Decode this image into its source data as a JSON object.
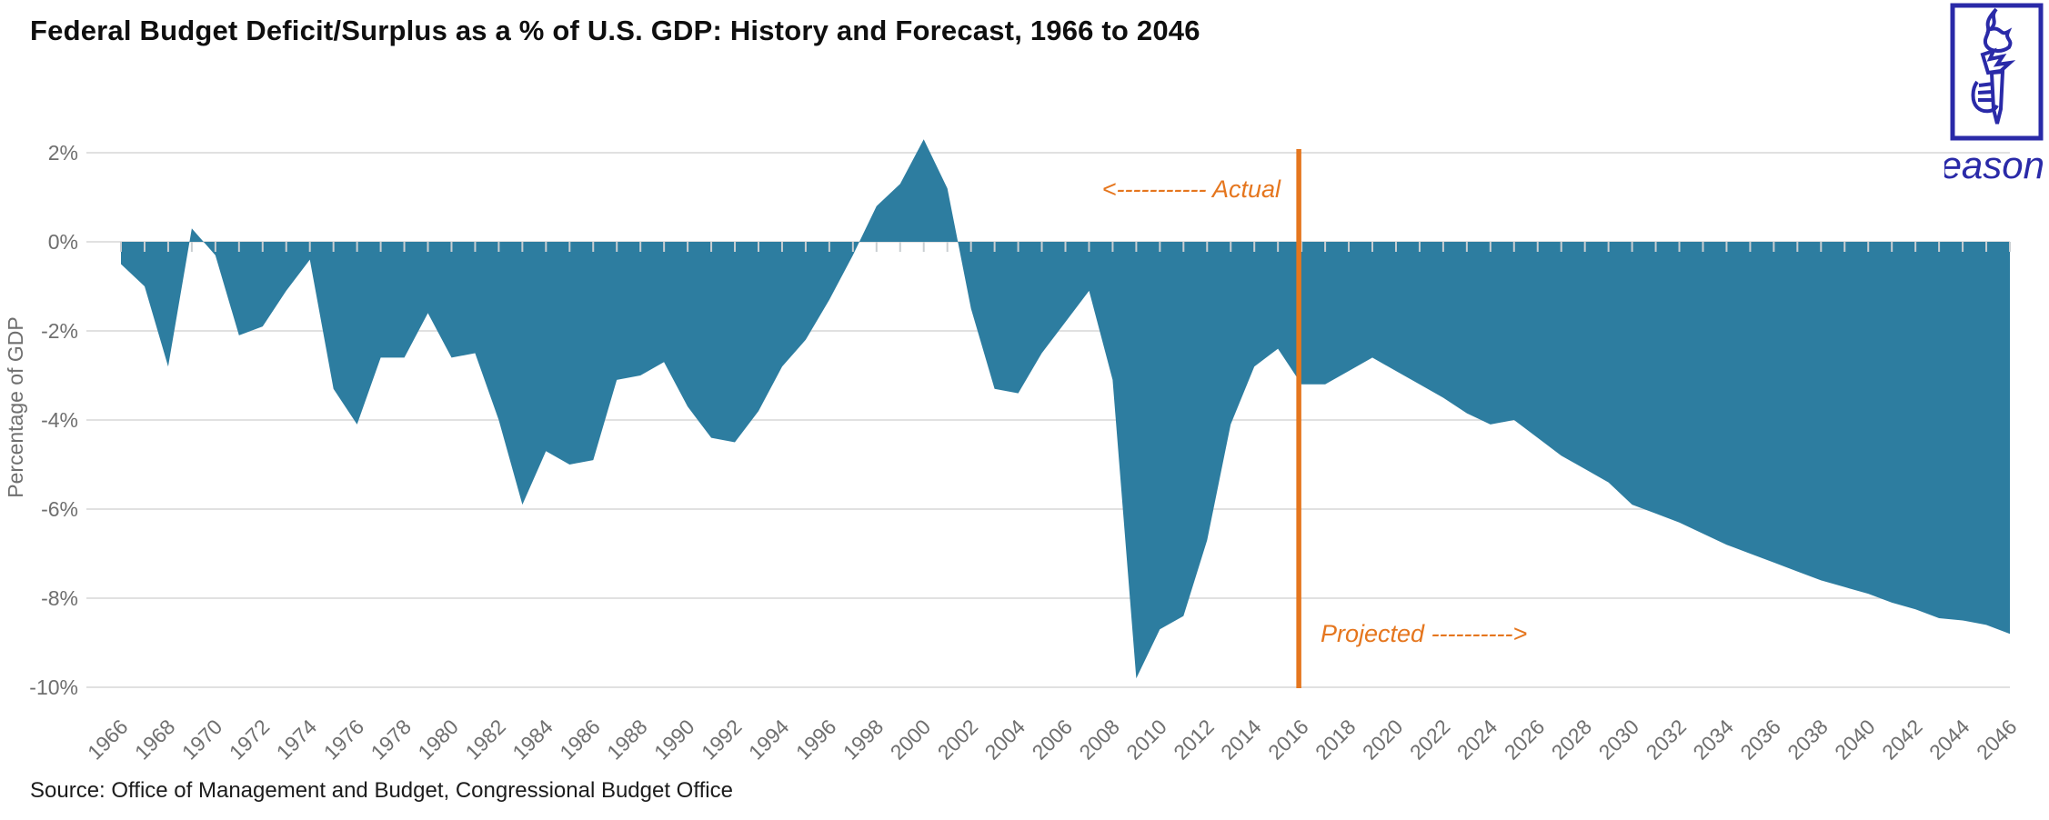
{
  "title": "Federal Budget Deficit/Surplus as a % of U.S. GDP: History and Forecast, 1966 to 2046",
  "source": "Source: Office of Management and Budget, Congressional Budget Office",
  "logo": {
    "brand": "Reason",
    "torch_icon": "torch-in-rectangle"
  },
  "colors": {
    "area": "#2d7da0",
    "divider": "#e5761e",
    "annotation": "#e5761e",
    "grid": "#e1e1e1",
    "axis_text": "#6f6f6f",
    "year_tick": "#c9ced1",
    "logo_blue": "#2a2aa8"
  },
  "annotations": {
    "actual_label": "<----------- Actual",
    "projected_label": "Projected ---------->",
    "divider_year": 2016
  },
  "chart_data": {
    "type": "area",
    "title": "Federal Budget Deficit/Surplus as a % of U.S. GDP: History and Forecast, 1966 to 2046",
    "xlabel": "",
    "ylabel": "Percentage of GDP",
    "xlim": [
      1966,
      2046
    ],
    "ylim": [
      -10,
      2
    ],
    "grid": "horizontal",
    "baseline": 0,
    "actual_through": 2015,
    "projected_from": 2016,
    "y_ticks": [
      {
        "v": 2,
        "label": "2%"
      },
      {
        "v": 0,
        "label": "0%"
      },
      {
        "v": -2,
        "label": "-2%"
      },
      {
        "v": -4,
        "label": "-4%"
      },
      {
        "v": -6,
        "label": "-6%"
      },
      {
        "v": -8,
        "label": "-8%"
      },
      {
        "v": -10,
        "label": "-10%"
      }
    ],
    "x_tick_years": [
      1966,
      1968,
      1970,
      1972,
      1974,
      1976,
      1978,
      1980,
      1982,
      1984,
      1986,
      1988,
      1990,
      1992,
      1994,
      1996,
      1998,
      2000,
      2002,
      2004,
      2006,
      2008,
      2010,
      2012,
      2014,
      2016,
      2018,
      2020,
      2022,
      2024,
      2026,
      2028,
      2030,
      2032,
      2034,
      2036,
      2038,
      2040,
      2042,
      2044,
      2046
    ],
    "x": [
      1966,
      1967,
      1968,
      1969,
      1970,
      1971,
      1972,
      1973,
      1974,
      1975,
      1976,
      1977,
      1978,
      1979,
      1980,
      1981,
      1982,
      1983,
      1984,
      1985,
      1986,
      1987,
      1988,
      1989,
      1990,
      1991,
      1992,
      1993,
      1994,
      1995,
      1996,
      1997,
      1998,
      1999,
      2000,
      2001,
      2002,
      2003,
      2004,
      2005,
      2006,
      2007,
      2008,
      2009,
      2010,
      2011,
      2012,
      2013,
      2014,
      2015,
      2016,
      2017,
      2018,
      2019,
      2020,
      2021,
      2022,
      2023,
      2024,
      2025,
      2026,
      2027,
      2028,
      2029,
      2030,
      2031,
      2032,
      2033,
      2034,
      2035,
      2036,
      2037,
      2038,
      2039,
      2040,
      2041,
      2042,
      2043,
      2044,
      2045,
      2046
    ],
    "values": [
      -0.5,
      -1.0,
      -2.8,
      0.3,
      -0.3,
      -2.1,
      -1.9,
      -1.1,
      -0.4,
      -3.3,
      -4.1,
      -2.6,
      -2.6,
      -1.6,
      -2.6,
      -2.5,
      -4.0,
      -5.9,
      -4.7,
      -5.0,
      -4.9,
      -3.1,
      -3.0,
      -2.7,
      -3.7,
      -4.4,
      -4.5,
      -3.8,
      -2.8,
      -2.2,
      -1.3,
      -0.3,
      0.8,
      1.3,
      2.3,
      1.2,
      -1.5,
      -3.3,
      -3.4,
      -2.5,
      -1.8,
      -1.1,
      -3.1,
      -9.8,
      -8.7,
      -8.4,
      -6.7,
      -4.1,
      -2.8,
      -2.4,
      -3.2,
      -3.2,
      -2.9,
      -2.6,
      -2.9,
      -3.2,
      -3.5,
      -3.85,
      -4.1,
      -4.0,
      -4.4,
      -4.8,
      -5.1,
      -5.4,
      -5.9,
      -6.1,
      -6.3,
      -6.55,
      -6.8,
      -7.0,
      -7.2,
      -7.4,
      -7.6,
      -7.75,
      -7.9,
      -8.1,
      -8.25,
      -8.45,
      -8.5,
      -8.6,
      -8.8
    ]
  }
}
